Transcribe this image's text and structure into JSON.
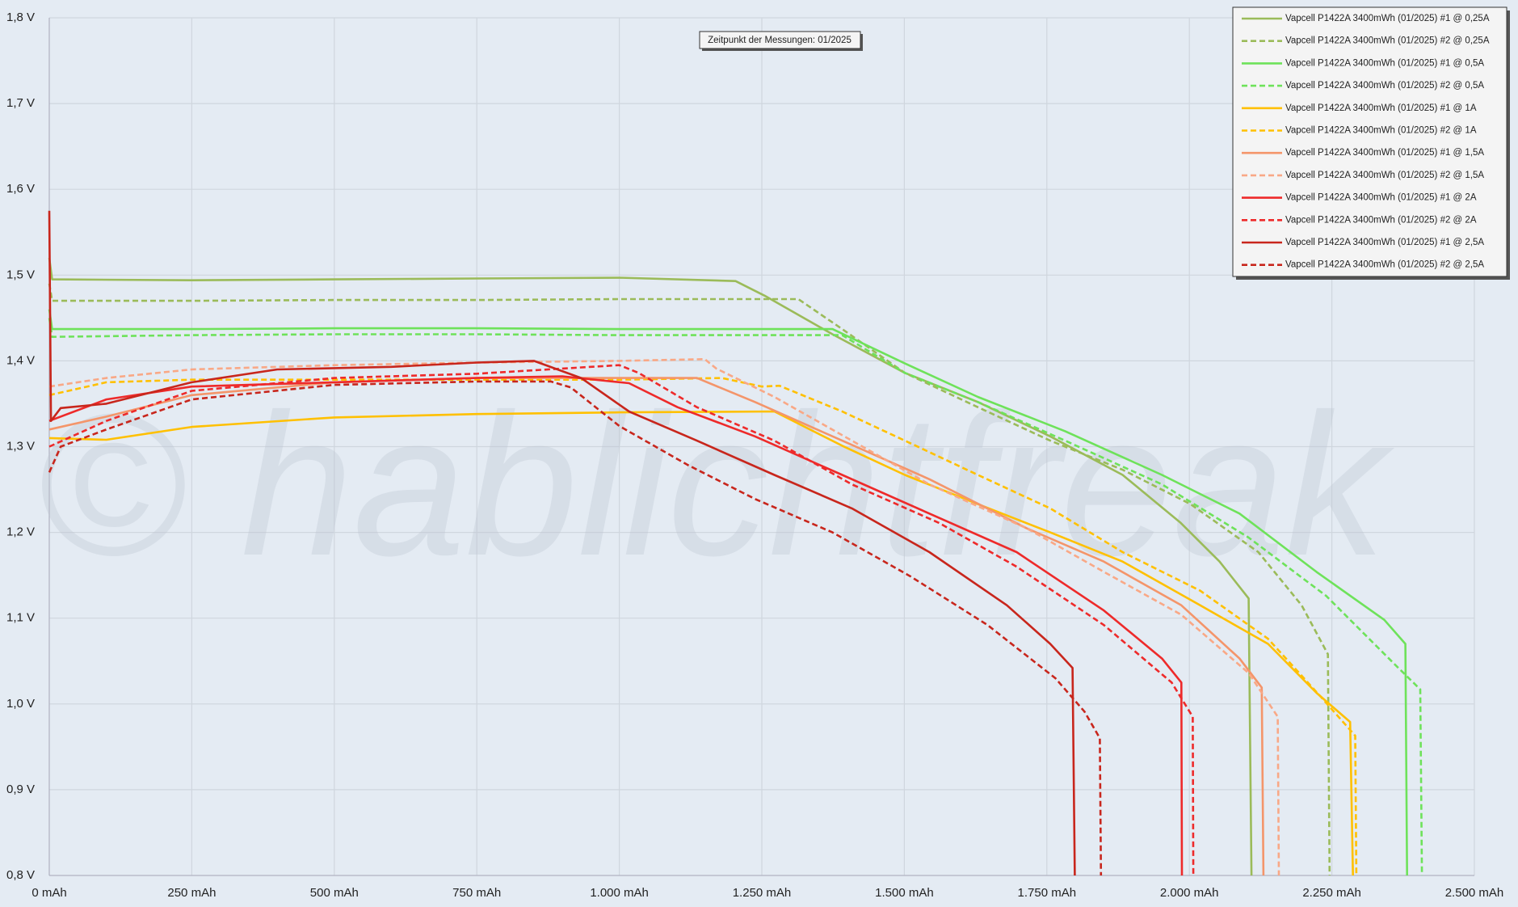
{
  "chart_data": {
    "type": "line",
    "annotation": "Zeitpunkt der Messungen: 01/2025",
    "watermark": "© hablichtfreak",
    "grid": true,
    "legend_position": "top-right",
    "xlim": [
      0,
      2500
    ],
    "ylim": [
      0.8,
      1.8
    ],
    "xticks": [
      {
        "value": 0,
        "label": "0 mAh"
      },
      {
        "value": 250,
        "label": "250 mAh"
      },
      {
        "value": 500,
        "label": "500 mAh"
      },
      {
        "value": 750,
        "label": "750 mAh"
      },
      {
        "value": 1000,
        "label": "1.000 mAh"
      },
      {
        "value": 1250,
        "label": "1.250 mAh"
      },
      {
        "value": 1500,
        "label": "1.500 mAh"
      },
      {
        "value": 1750,
        "label": "1.750 mAh"
      },
      {
        "value": 2000,
        "label": "2.000 mAh"
      },
      {
        "value": 2250,
        "label": "2.250 mAh"
      },
      {
        "value": 2500,
        "label": "2.500 mAh"
      }
    ],
    "yticks": [
      {
        "value": 0.8,
        "label": "0,8 V"
      },
      {
        "value": 0.9,
        "label": "0,9 V"
      },
      {
        "value": 1.0,
        "label": "1,0 V"
      },
      {
        "value": 1.1,
        "label": "1,1 V"
      },
      {
        "value": 1.2,
        "label": "1,2 V"
      },
      {
        "value": 1.3,
        "label": "1,3 V"
      },
      {
        "value": 1.4,
        "label": "1,4 V"
      },
      {
        "value": 1.5,
        "label": "1,5 V"
      },
      {
        "value": 1.6,
        "label": "1,6 V"
      },
      {
        "value": 1.7,
        "label": "1,7 V"
      },
      {
        "value": 1.8,
        "label": "1,8 V"
      }
    ],
    "series": [
      {
        "name": "Vapcell P1422A 3400mWh (01/2025) #1 @ 0,25A",
        "color": "#9bbb59",
        "dashed": false,
        "x": [
          0,
          5,
          250,
          500,
          750,
          1000,
          1204,
          1255,
          1374,
          1501,
          1629,
          1756,
          1883,
          1985,
          2053,
          2104,
          2109
        ],
        "values": [
          1.52,
          1.495,
          1.494,
          1.495,
          1.496,
          1.497,
          1.493,
          1.476,
          1.431,
          1.386,
          1.352,
          1.312,
          1.267,
          1.211,
          1.166,
          1.123,
          0.8
        ]
      },
      {
        "name": "Vapcell P1422A 3400mWh (01/2025) #2 @ 0,25A",
        "color": "#9bbb59",
        "dashed": true,
        "x": [
          0,
          5,
          250,
          500,
          750,
          1000,
          1314,
          1391,
          1501,
          1629,
          1756,
          1883,
          2002,
          2121,
          2197,
          2243,
          2246
        ],
        "values": [
          1.49,
          1.47,
          1.47,
          1.471,
          1.471,
          1.472,
          1.472,
          1.437,
          1.386,
          1.346,
          1.307,
          1.273,
          1.233,
          1.177,
          1.115,
          1.058,
          0.8
        ]
      },
      {
        "name": "Vapcell P1422A 3400mWh (01/2025) #1 @ 0,5A",
        "color": "#6ee25a",
        "dashed": false,
        "x": [
          0,
          5,
          250,
          500,
          750,
          1000,
          1374,
          1501,
          1629,
          1782,
          1952,
          2088,
          2223,
          2342,
          2379,
          2382
        ],
        "values": [
          1.46,
          1.437,
          1.437,
          1.438,
          1.438,
          1.437,
          1.437,
          1.397,
          1.358,
          1.318,
          1.267,
          1.222,
          1.154,
          1.098,
          1.07,
          0.8
        ]
      },
      {
        "name": "Vapcell P1422A 3400mWh (01/2025) #2 @ 0,5A",
        "color": "#6ee25a",
        "dashed": true,
        "x": [
          0,
          5,
          250,
          500,
          750,
          1000,
          1391,
          1501,
          1629,
          1782,
          1952,
          2104,
          2240,
          2359,
          2405,
          2408
        ],
        "values": [
          1.45,
          1.428,
          1.43,
          1.431,
          1.431,
          1.43,
          1.43,
          1.386,
          1.352,
          1.307,
          1.256,
          1.194,
          1.126,
          1.047,
          1.017,
          0.8
        ]
      },
      {
        "name": "Vapcell P1422A 3400mWh (01/2025) #1 @ 1A",
        "color": "#ffc000",
        "dashed": false,
        "x": [
          0,
          100,
          250,
          500,
          750,
          1000,
          1272,
          1391,
          1501,
          1629,
          1756,
          1883,
          2019,
          2138,
          2223,
          2282,
          2287
        ],
        "values": [
          1.31,
          1.308,
          1.323,
          1.334,
          1.338,
          1.34,
          1.341,
          1.301,
          1.267,
          1.233,
          1.2,
          1.166,
          1.115,
          1.07,
          1.013,
          0.979,
          0.8
        ]
      },
      {
        "name": "Vapcell P1422A 3400mWh (01/2025) #2 @ 1A",
        "color": "#ffc000",
        "dashed": true,
        "x": [
          0,
          100,
          250,
          500,
          750,
          1000,
          1180,
          1250,
          1281,
          1391,
          1501,
          1629,
          1756,
          1883,
          2019,
          2138,
          2231,
          2291,
          2293
        ],
        "values": [
          1.36,
          1.375,
          1.378,
          1.378,
          1.378,
          1.378,
          1.38,
          1.37,
          1.371,
          1.341,
          1.307,
          1.267,
          1.228,
          1.177,
          1.132,
          1.076,
          1.008,
          0.963,
          0.8
        ]
      },
      {
        "name": "Vapcell P1422A 3400mWh (01/2025) #1 @ 1,5A",
        "color": "#f4956a",
        "dashed": false,
        "x": [
          0,
          100,
          250,
          500,
          750,
          1000,
          1136,
          1238,
          1391,
          1544,
          1714,
          1850,
          1986,
          2088,
          2127,
          2130
        ],
        "values": [
          1.32,
          1.335,
          1.36,
          1.375,
          1.38,
          1.38,
          1.38,
          1.352,
          1.307,
          1.262,
          1.205,
          1.166,
          1.115,
          1.053,
          1.019,
          0.8
        ]
      },
      {
        "name": "Vapcell P1422A 3400mWh (01/2025) #2 @ 1,5A",
        "color": "#f9a886",
        "dashed": true,
        "x": [
          0,
          100,
          250,
          500,
          750,
          1000,
          1150,
          1170,
          1272,
          1408,
          1544,
          1714,
          1850,
          1986,
          2104,
          2155,
          2157
        ],
        "values": [
          1.37,
          1.38,
          1.39,
          1.395,
          1.398,
          1.4,
          1.402,
          1.391,
          1.358,
          1.307,
          1.256,
          1.205,
          1.154,
          1.104,
          1.036,
          0.985,
          0.8
        ]
      },
      {
        "name": "Vapcell P1422A 3400mWh (01/2025) #1 @ 2A",
        "color": "#ee2a2a",
        "dashed": false,
        "x": [
          0,
          100,
          250,
          500,
          750,
          900,
          1017,
          1102,
          1238,
          1391,
          1544,
          1697,
          1850,
          1952,
          1986,
          1987
        ],
        "values": [
          1.33,
          1.355,
          1.37,
          1.375,
          1.38,
          1.382,
          1.374,
          1.346,
          1.312,
          1.267,
          1.222,
          1.177,
          1.109,
          1.053,
          1.025,
          0.8
        ]
      },
      {
        "name": "Vapcell P1422A 3400mWh (01/2025) #2 @ 2A",
        "color": "#ee2a2a",
        "dashed": true,
        "x": [
          0,
          100,
          250,
          500,
          750,
          1000,
          1034,
          1136,
          1272,
          1408,
          1561,
          1697,
          1850,
          1969,
          2006,
          2007
        ],
        "values": [
          1.3,
          1.33,
          1.365,
          1.38,
          1.385,
          1.395,
          1.386,
          1.346,
          1.307,
          1.256,
          1.211,
          1.16,
          1.092,
          1.025,
          0.985,
          0.8
        ]
      },
      {
        "name": "Vapcell P1422A 3400mWh (01/2025) #1 @ 2,5A",
        "color": "#c8261c",
        "dashed": false,
        "x": [
          0,
          3,
          20,
          100,
          250,
          400,
          600,
          750,
          850,
          933,
          1017,
          1136,
          1272,
          1408,
          1544,
          1680,
          1756,
          1795,
          1799
        ],
        "values": [
          1.575,
          1.33,
          1.345,
          1.35,
          1.375,
          1.39,
          1.393,
          1.398,
          1.4,
          1.38,
          1.341,
          1.307,
          1.267,
          1.228,
          1.177,
          1.115,
          1.07,
          1.042,
          0.8
        ]
      },
      {
        "name": "Vapcell P1422A 3400mWh (01/2025) #2 @ 2,5A",
        "color": "#c8261c",
        "dashed": true,
        "x": [
          0,
          20,
          100,
          250,
          500,
          750,
          880,
          915,
          1000,
          1119,
          1238,
          1374,
          1510,
          1646,
          1765,
          1816,
          1843,
          1845
        ],
        "values": [
          1.27,
          1.3,
          1.32,
          1.355,
          1.372,
          1.376,
          1.376,
          1.369,
          1.324,
          1.279,
          1.239,
          1.2,
          1.149,
          1.092,
          1.03,
          0.991,
          0.96,
          0.8
        ]
      }
    ]
  }
}
